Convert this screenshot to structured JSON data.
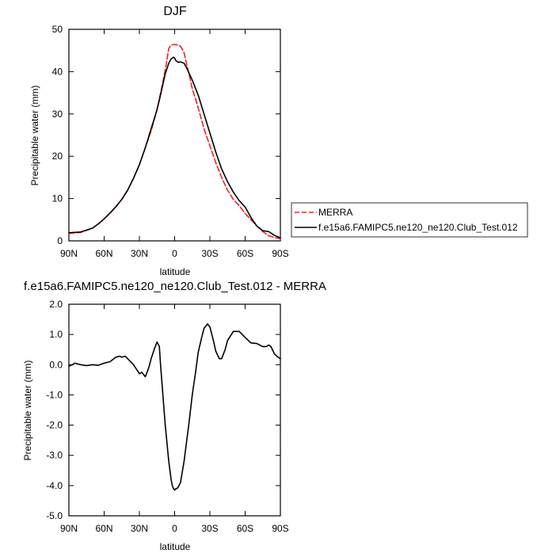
{
  "chart_data": [
    {
      "type": "line",
      "title": "DJF",
      "xlabel": "latitude",
      "ylabel": "Precipitable water (mm)",
      "xlim": [
        90,
        -90
      ],
      "ylim": [
        0,
        50
      ],
      "xticks": [
        {
          "value": 90,
          "label": "90N"
        },
        {
          "value": 60,
          "label": "60N"
        },
        {
          "value": 30,
          "label": "30N"
        },
        {
          "value": 0,
          "label": "0"
        },
        {
          "value": -30,
          "label": "30S"
        },
        {
          "value": -60,
          "label": "60S"
        },
        {
          "value": -90,
          "label": "90S"
        }
      ],
      "yticks": [
        {
          "value": 0,
          "label": "0"
        },
        {
          "value": 10,
          "label": "10"
        },
        {
          "value": 20,
          "label": "20"
        },
        {
          "value": 30,
          "label": "30"
        },
        {
          "value": 40,
          "label": "40"
        },
        {
          "value": 50,
          "label": "50"
        }
      ],
      "legend": {
        "position": "right",
        "entries": [
          "MERRA",
          "f.e15a6.FAMIPC5.ne120_ne120.Club_Test.012"
        ]
      },
      "series": [
        {
          "name": "MERRA",
          "color": "#e8242b",
          "dash": "dashed",
          "x": [
            90,
            80,
            70,
            65,
            60,
            55,
            50,
            45,
            40,
            35,
            30,
            25,
            20,
            15,
            10,
            7,
            5,
            3,
            0,
            -3,
            -5,
            -8,
            -10,
            -13,
            -15,
            -20,
            -25,
            -30,
            -35,
            -40,
            -45,
            -50,
            -55,
            -60,
            -65,
            -70,
            -75,
            -80,
            -85,
            -90
          ],
          "y": [
            1.8,
            2.0,
            3.0,
            4.0,
            5.2,
            6.5,
            8.0,
            9.8,
            12.0,
            14.8,
            18.0,
            22.0,
            26.0,
            31.0,
            37.5,
            42.0,
            45.5,
            46.3,
            46.4,
            46.3,
            46.0,
            44.5,
            42.0,
            38.5,
            36.0,
            31.5,
            26.5,
            22.5,
            18.5,
            15.0,
            12.0,
            9.8,
            8.3,
            6.5,
            5.0,
            3.5,
            2.2,
            1.2,
            0.8,
            0.5
          ]
        },
        {
          "name": "f.e15a6.FAMIPC5.ne120_ne120.Club_Test.012",
          "color": "#000000",
          "dash": "solid",
          "x": [
            90,
            80,
            70,
            65,
            60,
            55,
            50,
            45,
            40,
            35,
            30,
            25,
            20,
            15,
            12,
            10,
            8,
            5,
            3,
            1,
            0,
            -1,
            -3,
            -5,
            -8,
            -10,
            -12,
            -15,
            -20,
            -25,
            -30,
            -35,
            -40,
            -45,
            -50,
            -55,
            -60,
            -65,
            -70,
            -75,
            -80,
            -85,
            -90
          ],
          "y": [
            1.9,
            2.1,
            3.0,
            4.0,
            5.2,
            6.6,
            8.1,
            9.8,
            12.0,
            14.8,
            18.0,
            22.0,
            26.5,
            31.0,
            34.5,
            37.0,
            39.5,
            42.0,
            43.0,
            43.4,
            43.2,
            42.6,
            42.2,
            42.3,
            42.0,
            41.0,
            39.8,
            38.0,
            34.5,
            30.0,
            25.5,
            21.0,
            17.0,
            14.0,
            11.5,
            9.5,
            8.0,
            5.5,
            3.5,
            2.4,
            2.2,
            1.3,
            0.7
          ]
        }
      ]
    },
    {
      "type": "line",
      "title": "f.e15a6.FAMIPC5.ne120_ne120.Club_Test.012 - MERRA",
      "xlabel": "latitude",
      "ylabel": "Precipitable water (mm)",
      "xlim": [
        90,
        -90
      ],
      "ylim": [
        -5.0,
        2.0
      ],
      "xticks": [
        {
          "value": 90,
          "label": "90N"
        },
        {
          "value": 60,
          "label": "60N"
        },
        {
          "value": 30,
          "label": "30N"
        },
        {
          "value": 0,
          "label": "0"
        },
        {
          "value": -30,
          "label": "30S"
        },
        {
          "value": -60,
          "label": "60S"
        },
        {
          "value": -90,
          "label": "90S"
        }
      ],
      "yticks": [
        {
          "value": -5.0,
          "label": "-5.0"
        },
        {
          "value": -4.0,
          "label": "-4.0"
        },
        {
          "value": -3.0,
          "label": "-3.0"
        },
        {
          "value": -2.0,
          "label": "-2.0"
        },
        {
          "value": -1.0,
          "label": "-1.0"
        },
        {
          "value": 0.0,
          "label": "0.0"
        },
        {
          "value": 1.0,
          "label": "1.0"
        },
        {
          "value": 2.0,
          "label": "2.0"
        }
      ],
      "series": [
        {
          "name": "f.e15a6.FAMIPC5.ne120_ne120.Club_Test.012 - MERRA",
          "color": "#000000",
          "dash": "solid",
          "x": [
            90,
            87,
            85,
            80,
            75,
            70,
            65,
            60,
            55,
            50,
            47,
            45,
            42,
            40,
            35,
            30,
            28,
            26,
            25,
            22,
            20,
            17,
            15,
            13,
            12,
            11,
            10,
            8,
            5,
            3,
            2,
            1,
            0,
            -1,
            -2,
            -3,
            -5,
            -8,
            -10,
            -12,
            -15,
            -18,
            -20,
            -23,
            -25,
            -28,
            -30,
            -33,
            -35,
            -38,
            -40,
            -43,
            -45,
            -50,
            -55,
            -60,
            -65,
            -70,
            -75,
            -78,
            -80,
            -82,
            -85,
            -88,
            -90
          ],
          "y": [
            -0.05,
            0.0,
            0.05,
            0.0,
            -0.03,
            0.0,
            -0.02,
            0.05,
            0.1,
            0.25,
            0.28,
            0.25,
            0.28,
            0.2,
            0.0,
            -0.3,
            -0.25,
            -0.35,
            -0.4,
            -0.1,
            0.2,
            0.55,
            0.75,
            0.6,
            0.0,
            -0.5,
            -1.0,
            -2.0,
            -3.2,
            -3.8,
            -4.0,
            -4.1,
            -4.15,
            -4.1,
            -4.1,
            -4.05,
            -3.9,
            -3.2,
            -2.6,
            -2.0,
            -1.0,
            -0.2,
            0.4,
            0.9,
            1.2,
            1.35,
            1.25,
            0.8,
            0.45,
            0.2,
            0.2,
            0.5,
            0.8,
            1.1,
            1.1,
            0.9,
            0.72,
            0.7,
            0.6,
            0.6,
            0.65,
            0.6,
            0.35,
            0.25,
            0.2
          ]
        }
      ]
    }
  ]
}
